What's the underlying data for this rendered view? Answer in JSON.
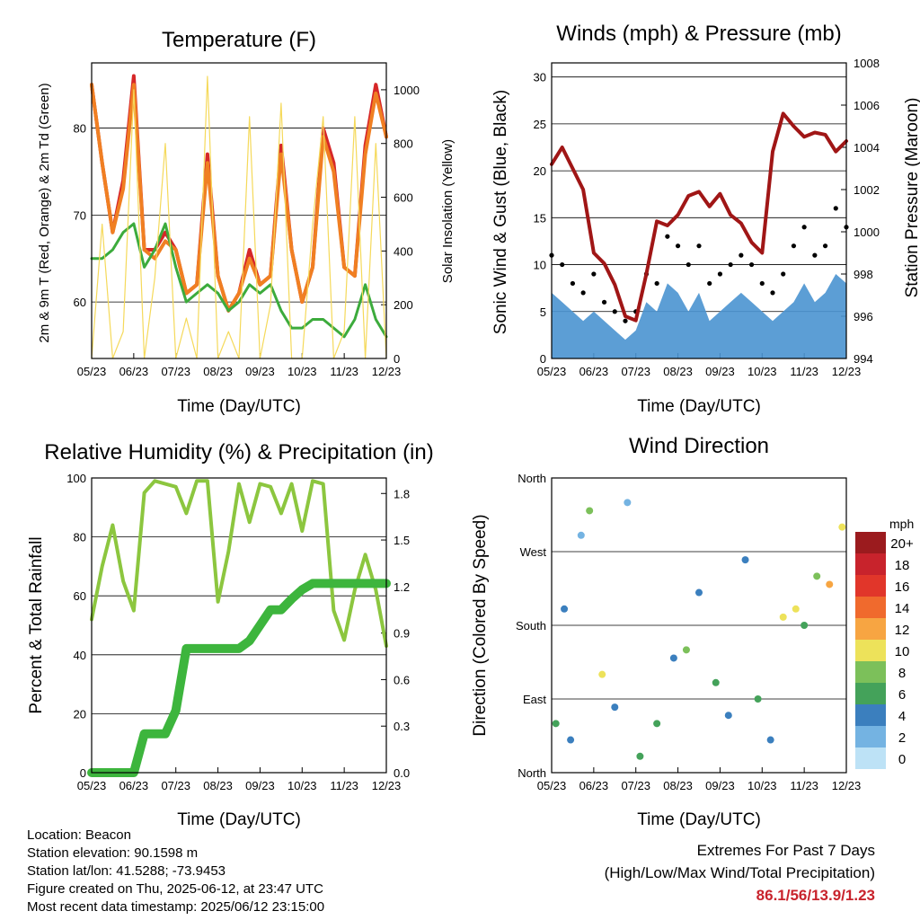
{
  "panels": {
    "temperature": {
      "title": "Temperature (F)",
      "xlabel": "Time (Day/UTC)",
      "ylabel_left": "2m & 9m T (Red, Orange) & 2m Td (Green)",
      "ylabel_right": "Solar Insolation (Yellow)"
    },
    "winds": {
      "title": "Winds (mph) & Pressure (mb)",
      "xlabel": "Time (Day/UTC)",
      "ylabel_left": "Sonic Wind & Gust (Blue, Black)",
      "ylabel_right": "Station Pressure (Maroon)"
    },
    "humidity": {
      "title": "Relative Humidity (%) & Precipitation (in)",
      "xlabel": "Time (Day/UTC)",
      "ylabel_left": "Percent & Total Rainfall"
    },
    "direction": {
      "title": "Wind Direction",
      "xlabel": "Time (Day/UTC)",
      "ylabel_left": "Direction (Colored By Speed)"
    }
  },
  "time_ticks": [
    "05/23",
    "06/23",
    "07/23",
    "08/23",
    "09/23",
    "10/23",
    "11/23",
    "12/23"
  ],
  "chart_data": [
    {
      "type": "line",
      "title": "Temperature (F)",
      "xlabel": "Time (Day/UTC)",
      "ylabel": "2m & 9m T (Red, Orange) & 2m Td (Green)",
      "y2label": "Solar Insolation (Yellow)",
      "ylim": [
        53.5,
        87.5
      ],
      "y2lim": [
        0,
        1100
      ],
      "yticks": [
        60,
        70,
        80
      ],
      "y2ticks": [
        0,
        200,
        400,
        600,
        800,
        1000
      ],
      "x": [
        0,
        0.25,
        0.5,
        0.75,
        1.0,
        1.25,
        1.5,
        1.75,
        2.0,
        2.25,
        2.5,
        2.75,
        3.0,
        3.25,
        3.5,
        3.75,
        4.0,
        4.25,
        4.5,
        4.75,
        5.0,
        5.25,
        5.5,
        5.75,
        6.0,
        6.25,
        6.5,
        6.75,
        7.0
      ],
      "series": [
        {
          "name": "2m T",
          "color": "#d62728",
          "values": [
            85,
            76,
            68,
            74,
            86,
            66,
            66,
            68,
            66,
            61,
            62,
            77,
            63,
            59,
            61,
            66,
            62,
            63,
            78,
            66,
            60,
            64,
            80,
            76,
            64,
            63,
            78,
            85,
            79
          ]
        },
        {
          "name": "9m T",
          "color": "#f07f22",
          "values": [
            85,
            76,
            68,
            73,
            85,
            66,
            65,
            67,
            66,
            61,
            62,
            76,
            63,
            59,
            61,
            65,
            62,
            63,
            77,
            66,
            60,
            64,
            79,
            75,
            64,
            63,
            77,
            84,
            79
          ]
        },
        {
          "name": "2m Td",
          "color": "#3cab3c",
          "values": [
            65,
            65,
            66,
            68,
            69,
            64,
            66,
            69,
            64,
            60,
            61,
            62,
            61,
            59,
            60,
            62,
            61,
            62,
            59,
            57,
            57,
            58,
            58,
            57,
            56,
            58,
            62,
            58,
            56
          ]
        },
        {
          "name": "Solar Insolation",
          "color": "#f5d95a",
          "axis": "y2",
          "values": [
            0,
            500,
            0,
            100,
            1000,
            0,
            300,
            800,
            0,
            150,
            0,
            1050,
            0,
            100,
            0,
            900,
            0,
            200,
            950,
            0,
            0,
            500,
            900,
            0,
            100,
            900,
            0,
            800,
            0
          ]
        }
      ]
    },
    {
      "type": "scatter",
      "title": "Winds (mph) & Pressure (mb)",
      "xlabel": "Time (Day/UTC)",
      "ylabel": "Sonic Wind & Gust (Blue, Black)",
      "y2label": "Station Pressure (Maroon)",
      "ylim": [
        0,
        31.5
      ],
      "y2lim": [
        994,
        1008
      ],
      "yticks": [
        0,
        5,
        10,
        15,
        20,
        25,
        30
      ],
      "y2ticks": [
        994,
        996,
        998,
        1000,
        1002,
        1004,
        1006,
        1008
      ],
      "x": [
        0,
        0.25,
        0.5,
        0.75,
        1.0,
        1.25,
        1.5,
        1.75,
        2.0,
        2.25,
        2.5,
        2.75,
        3.0,
        3.25,
        3.5,
        3.75,
        4.0,
        4.25,
        4.5,
        4.75,
        5.0,
        5.25,
        5.5,
        5.75,
        6.0,
        6.25,
        6.5,
        6.75,
        7.0
      ],
      "series": [
        {
          "name": "Sonic Wind",
          "color": "#4a94d0",
          "values": [
            7,
            6,
            5,
            4,
            5,
            4,
            3,
            2,
            3,
            6,
            5,
            8,
            7,
            5,
            7,
            4,
            5,
            6,
            7,
            6,
            5,
            4,
            5,
            6,
            8,
            6,
            7,
            9,
            8
          ]
        },
        {
          "name": "Gust",
          "color": "#000000",
          "values": [
            11,
            10,
            8,
            7,
            9,
            6,
            5,
            4,
            5,
            9,
            8,
            13,
            12,
            10,
            12,
            8,
            9,
            10,
            11,
            10,
            8,
            7,
            9,
            12,
            14,
            11,
            12,
            16,
            14
          ]
        },
        {
          "name": "Station Pressure",
          "color": "#a01616",
          "axis": "y2",
          "values": [
            1003.2,
            1004.0,
            1003.0,
            1002.0,
            999.0,
            998.5,
            997.5,
            996.0,
            995.8,
            998.0,
            1000.5,
            1000.3,
            1000.8,
            1001.7,
            1001.9,
            1001.2,
            1001.8,
            1000.8,
            1000.4,
            999.5,
            999.0,
            1003.8,
            1005.6,
            1005.0,
            1004.5,
            1004.7,
            1004.6,
            1003.8,
            1004.3
          ]
        }
      ]
    },
    {
      "type": "line",
      "title": "Relative Humidity (%) & Precipitation (in)",
      "xlabel": "Time (Day/UTC)",
      "ylabel": "Percent & Total Rainfall",
      "ylim": [
        0,
        100
      ],
      "y2lim": [
        0,
        1.9
      ],
      "yticks": [
        0,
        20,
        40,
        60,
        80,
        100
      ],
      "y2ticks": [
        0.0,
        0.3,
        0.6,
        0.9,
        1.2,
        1.5,
        1.8
      ],
      "x": [
        0,
        0.25,
        0.5,
        0.75,
        1.0,
        1.25,
        1.5,
        1.75,
        2.0,
        2.25,
        2.5,
        2.75,
        3.0,
        3.25,
        3.5,
        3.75,
        4.0,
        4.25,
        4.5,
        4.75,
        5.0,
        5.25,
        5.5,
        5.75,
        6.0,
        6.25,
        6.5,
        6.75,
        7.0
      ],
      "series": [
        {
          "name": "Relative Humidity",
          "color": "#8cc63f",
          "values": [
            52,
            70,
            84,
            65,
            55,
            95,
            99,
            98,
            97,
            88,
            99,
            99,
            58,
            75,
            98,
            85,
            98,
            97,
            88,
            98,
            82,
            99,
            98,
            55,
            45,
            62,
            74,
            62,
            43
          ]
        },
        {
          "name": "Total Rainfall",
          "color": "#3db53d",
          "axis": "y2",
          "values": [
            0.0,
            0.0,
            0.0,
            0.0,
            0.0,
            0.25,
            0.25,
            0.25,
            0.4,
            0.8,
            0.8,
            0.8,
            0.8,
            0.8,
            0.8,
            0.85,
            0.95,
            1.05,
            1.05,
            1.12,
            1.18,
            1.22,
            1.22,
            1.22,
            1.22,
            1.22,
            1.22,
            1.22,
            1.22
          ]
        }
      ]
    },
    {
      "type": "scatter",
      "title": "Wind Direction",
      "xlabel": "Time (Day/UTC)",
      "ylabel": "Direction (Colored By Speed)",
      "ylim": [
        0,
        360
      ],
      "yticks": [
        "North",
        "East",
        "South",
        "West",
        "North"
      ],
      "colorbar": {
        "unit": "mph",
        "labels": [
          "20+",
          "18",
          "16",
          "14",
          "12",
          "10",
          "8",
          "6",
          "4",
          "2",
          "0"
        ],
        "colors": [
          "#9b1b1e",
          "#c8232c",
          "#e1362a",
          "#f06a2d",
          "#f7a542",
          "#ede25a",
          "#7cc05a",
          "#44a25a",
          "#3b7fbe",
          "#74b3e2",
          "#bde2f6"
        ]
      },
      "x": [
        0.1,
        0.3,
        0.45,
        0.7,
        0.9,
        1.2,
        1.5,
        1.8,
        2.1,
        2.5,
        2.9,
        3.2,
        3.5,
        3.9,
        4.2,
        4.6,
        4.9,
        5.2,
        5.5,
        5.8,
        6.0,
        6.3,
        6.6,
        6.9
      ],
      "values": [
        60,
        200,
        40,
        290,
        320,
        120,
        80,
        330,
        20,
        60,
        140,
        150,
        220,
        110,
        70,
        260,
        90,
        40,
        190,
        200,
        180,
        240,
        230,
        300
      ],
      "speeds": [
        5,
        4,
        3,
        2,
        8,
        9,
        3,
        2,
        6,
        5,
        4,
        7,
        3,
        6,
        4,
        3,
        5,
        4,
        9,
        10,
        6,
        8,
        11,
        9
      ]
    }
  ],
  "info": {
    "location": "Location: Beacon",
    "elevation": "Station elevation: 90.1598 m",
    "latlon": "Station lat/lon: 41.5288; -73.9453",
    "created": "Figure created on Thu, 2025-06-12, at 23:47 UTC",
    "recent": "Most recent data timestamp: 2025/06/12 23:15:00"
  },
  "extremes": {
    "line1": "Extremes For Past 7 Days",
    "line2": "(High/Low/Max Wind/Total Precipitation)",
    "values": "86.1/56/13.9/1.23"
  }
}
